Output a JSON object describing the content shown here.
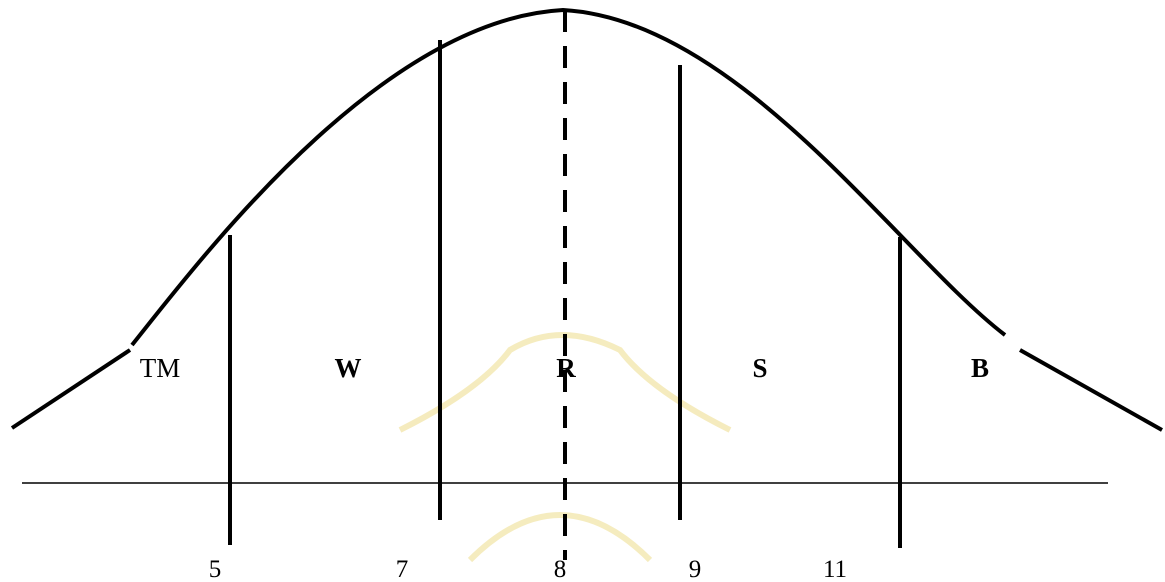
{
  "zones": [
    "TM",
    "W",
    "R",
    "S",
    "B"
  ],
  "axis_labels": [
    "5",
    "7",
    "8",
    "9",
    "11"
  ]
}
